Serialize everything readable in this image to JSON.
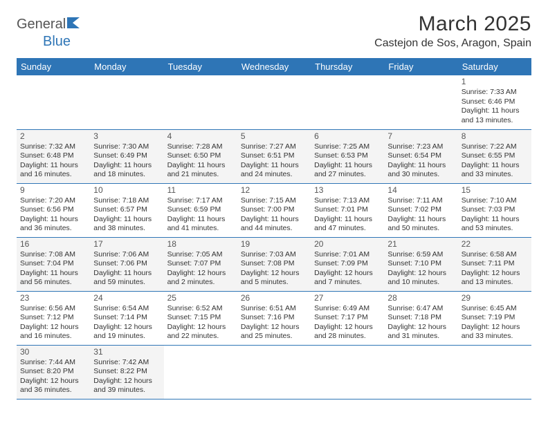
{
  "logo": {
    "text1": "General",
    "text2": "Blue"
  },
  "title": "March 2025",
  "location": "Castejon de Sos, Aragon, Spain",
  "colors": {
    "header_bg": "#2e75b6",
    "header_text": "#ffffff",
    "border": "#2e75b6",
    "shaded_bg": "#f4f4f4",
    "text": "#333333",
    "logo_blue": "#2e75b6",
    "logo_gray": "#555555"
  },
  "columns": [
    "Sunday",
    "Monday",
    "Tuesday",
    "Wednesday",
    "Thursday",
    "Friday",
    "Saturday"
  ],
  "weeks": [
    {
      "shaded": false,
      "days": [
        null,
        null,
        null,
        null,
        null,
        null,
        {
          "n": "1",
          "sunrise": "Sunrise: 7:33 AM",
          "sunset": "Sunset: 6:46 PM",
          "daylight": "Daylight: 11 hours and 13 minutes."
        }
      ]
    },
    {
      "shaded": true,
      "days": [
        {
          "n": "2",
          "sunrise": "Sunrise: 7:32 AM",
          "sunset": "Sunset: 6:48 PM",
          "daylight": "Daylight: 11 hours and 16 minutes."
        },
        {
          "n": "3",
          "sunrise": "Sunrise: 7:30 AM",
          "sunset": "Sunset: 6:49 PM",
          "daylight": "Daylight: 11 hours and 18 minutes."
        },
        {
          "n": "4",
          "sunrise": "Sunrise: 7:28 AM",
          "sunset": "Sunset: 6:50 PM",
          "daylight": "Daylight: 11 hours and 21 minutes."
        },
        {
          "n": "5",
          "sunrise": "Sunrise: 7:27 AM",
          "sunset": "Sunset: 6:51 PM",
          "daylight": "Daylight: 11 hours and 24 minutes."
        },
        {
          "n": "6",
          "sunrise": "Sunrise: 7:25 AM",
          "sunset": "Sunset: 6:53 PM",
          "daylight": "Daylight: 11 hours and 27 minutes."
        },
        {
          "n": "7",
          "sunrise": "Sunrise: 7:23 AM",
          "sunset": "Sunset: 6:54 PM",
          "daylight": "Daylight: 11 hours and 30 minutes."
        },
        {
          "n": "8",
          "sunrise": "Sunrise: 7:22 AM",
          "sunset": "Sunset: 6:55 PM",
          "daylight": "Daylight: 11 hours and 33 minutes."
        }
      ]
    },
    {
      "shaded": false,
      "days": [
        {
          "n": "9",
          "sunrise": "Sunrise: 7:20 AM",
          "sunset": "Sunset: 6:56 PM",
          "daylight": "Daylight: 11 hours and 36 minutes."
        },
        {
          "n": "10",
          "sunrise": "Sunrise: 7:18 AM",
          "sunset": "Sunset: 6:57 PM",
          "daylight": "Daylight: 11 hours and 38 minutes."
        },
        {
          "n": "11",
          "sunrise": "Sunrise: 7:17 AM",
          "sunset": "Sunset: 6:59 PM",
          "daylight": "Daylight: 11 hours and 41 minutes."
        },
        {
          "n": "12",
          "sunrise": "Sunrise: 7:15 AM",
          "sunset": "Sunset: 7:00 PM",
          "daylight": "Daylight: 11 hours and 44 minutes."
        },
        {
          "n": "13",
          "sunrise": "Sunrise: 7:13 AM",
          "sunset": "Sunset: 7:01 PM",
          "daylight": "Daylight: 11 hours and 47 minutes."
        },
        {
          "n": "14",
          "sunrise": "Sunrise: 7:11 AM",
          "sunset": "Sunset: 7:02 PM",
          "daylight": "Daylight: 11 hours and 50 minutes."
        },
        {
          "n": "15",
          "sunrise": "Sunrise: 7:10 AM",
          "sunset": "Sunset: 7:03 PM",
          "daylight": "Daylight: 11 hours and 53 minutes."
        }
      ]
    },
    {
      "shaded": true,
      "days": [
        {
          "n": "16",
          "sunrise": "Sunrise: 7:08 AM",
          "sunset": "Sunset: 7:04 PM",
          "daylight": "Daylight: 11 hours and 56 minutes."
        },
        {
          "n": "17",
          "sunrise": "Sunrise: 7:06 AM",
          "sunset": "Sunset: 7:06 PM",
          "daylight": "Daylight: 11 hours and 59 minutes."
        },
        {
          "n": "18",
          "sunrise": "Sunrise: 7:05 AM",
          "sunset": "Sunset: 7:07 PM",
          "daylight": "Daylight: 12 hours and 2 minutes."
        },
        {
          "n": "19",
          "sunrise": "Sunrise: 7:03 AM",
          "sunset": "Sunset: 7:08 PM",
          "daylight": "Daylight: 12 hours and 5 minutes."
        },
        {
          "n": "20",
          "sunrise": "Sunrise: 7:01 AM",
          "sunset": "Sunset: 7:09 PM",
          "daylight": "Daylight: 12 hours and 7 minutes."
        },
        {
          "n": "21",
          "sunrise": "Sunrise: 6:59 AM",
          "sunset": "Sunset: 7:10 PM",
          "daylight": "Daylight: 12 hours and 10 minutes."
        },
        {
          "n": "22",
          "sunrise": "Sunrise: 6:58 AM",
          "sunset": "Sunset: 7:11 PM",
          "daylight": "Daylight: 12 hours and 13 minutes."
        }
      ]
    },
    {
      "shaded": false,
      "days": [
        {
          "n": "23",
          "sunrise": "Sunrise: 6:56 AM",
          "sunset": "Sunset: 7:12 PM",
          "daylight": "Daylight: 12 hours and 16 minutes."
        },
        {
          "n": "24",
          "sunrise": "Sunrise: 6:54 AM",
          "sunset": "Sunset: 7:14 PM",
          "daylight": "Daylight: 12 hours and 19 minutes."
        },
        {
          "n": "25",
          "sunrise": "Sunrise: 6:52 AM",
          "sunset": "Sunset: 7:15 PM",
          "daylight": "Daylight: 12 hours and 22 minutes."
        },
        {
          "n": "26",
          "sunrise": "Sunrise: 6:51 AM",
          "sunset": "Sunset: 7:16 PM",
          "daylight": "Daylight: 12 hours and 25 minutes."
        },
        {
          "n": "27",
          "sunrise": "Sunrise: 6:49 AM",
          "sunset": "Sunset: 7:17 PM",
          "daylight": "Daylight: 12 hours and 28 minutes."
        },
        {
          "n": "28",
          "sunrise": "Sunrise: 6:47 AM",
          "sunset": "Sunset: 7:18 PM",
          "daylight": "Daylight: 12 hours and 31 minutes."
        },
        {
          "n": "29",
          "sunrise": "Sunrise: 6:45 AM",
          "sunset": "Sunset: 7:19 PM",
          "daylight": "Daylight: 12 hours and 33 minutes."
        }
      ]
    },
    {
      "shaded": true,
      "days": [
        {
          "n": "30",
          "sunrise": "Sunrise: 7:44 AM",
          "sunset": "Sunset: 8:20 PM",
          "daylight": "Daylight: 12 hours and 36 minutes."
        },
        {
          "n": "31",
          "sunrise": "Sunrise: 7:42 AM",
          "sunset": "Sunset: 8:22 PM",
          "daylight": "Daylight: 12 hours and 39 minutes."
        },
        null,
        null,
        null,
        null,
        null
      ]
    }
  ]
}
